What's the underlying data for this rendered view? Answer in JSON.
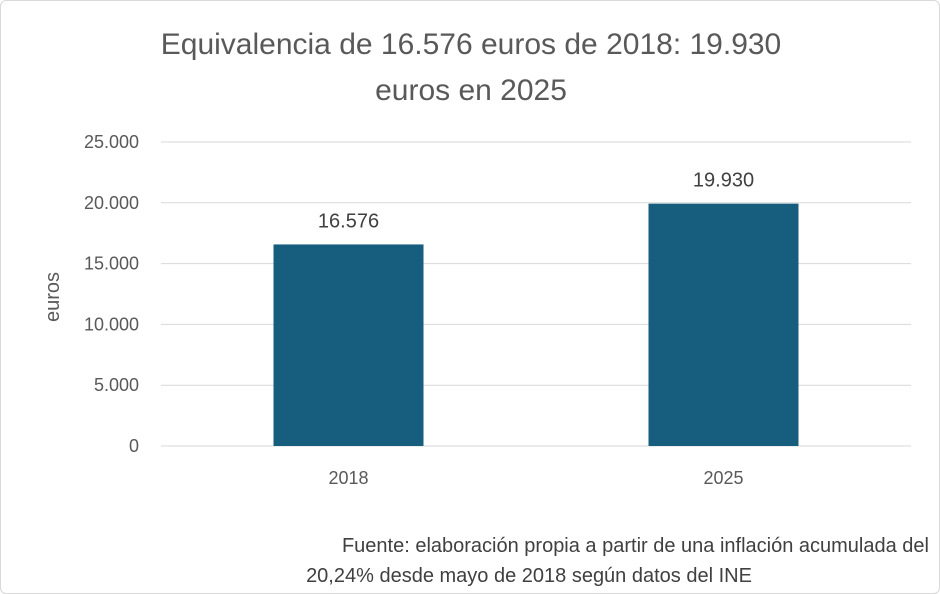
{
  "chart_data": {
    "type": "bar",
    "title_line1": "Equivalencia de 16.576 euros de 2018: 19.930",
    "title_line2": "euros en 2025",
    "categories": [
      "2018",
      "2025"
    ],
    "values": [
      16576,
      19930
    ],
    "value_labels": [
      "16.576",
      "19.930"
    ],
    "ylabel": "euros",
    "xlabel": "",
    "ylim": [
      0,
      25000
    ],
    "yticks": [
      0,
      5000,
      10000,
      15000,
      20000,
      25000
    ],
    "ytick_labels": [
      "0",
      "5.000",
      "10.000",
      "15.000",
      "20.000",
      "25.000"
    ],
    "grid": true,
    "bar_color": "#175e7e",
    "source_line1": "Fuente: elaboración propia a partir de una inflación acumulada del",
    "source_line2": "20,24% desde mayo de 2018 según datos del INE"
  }
}
